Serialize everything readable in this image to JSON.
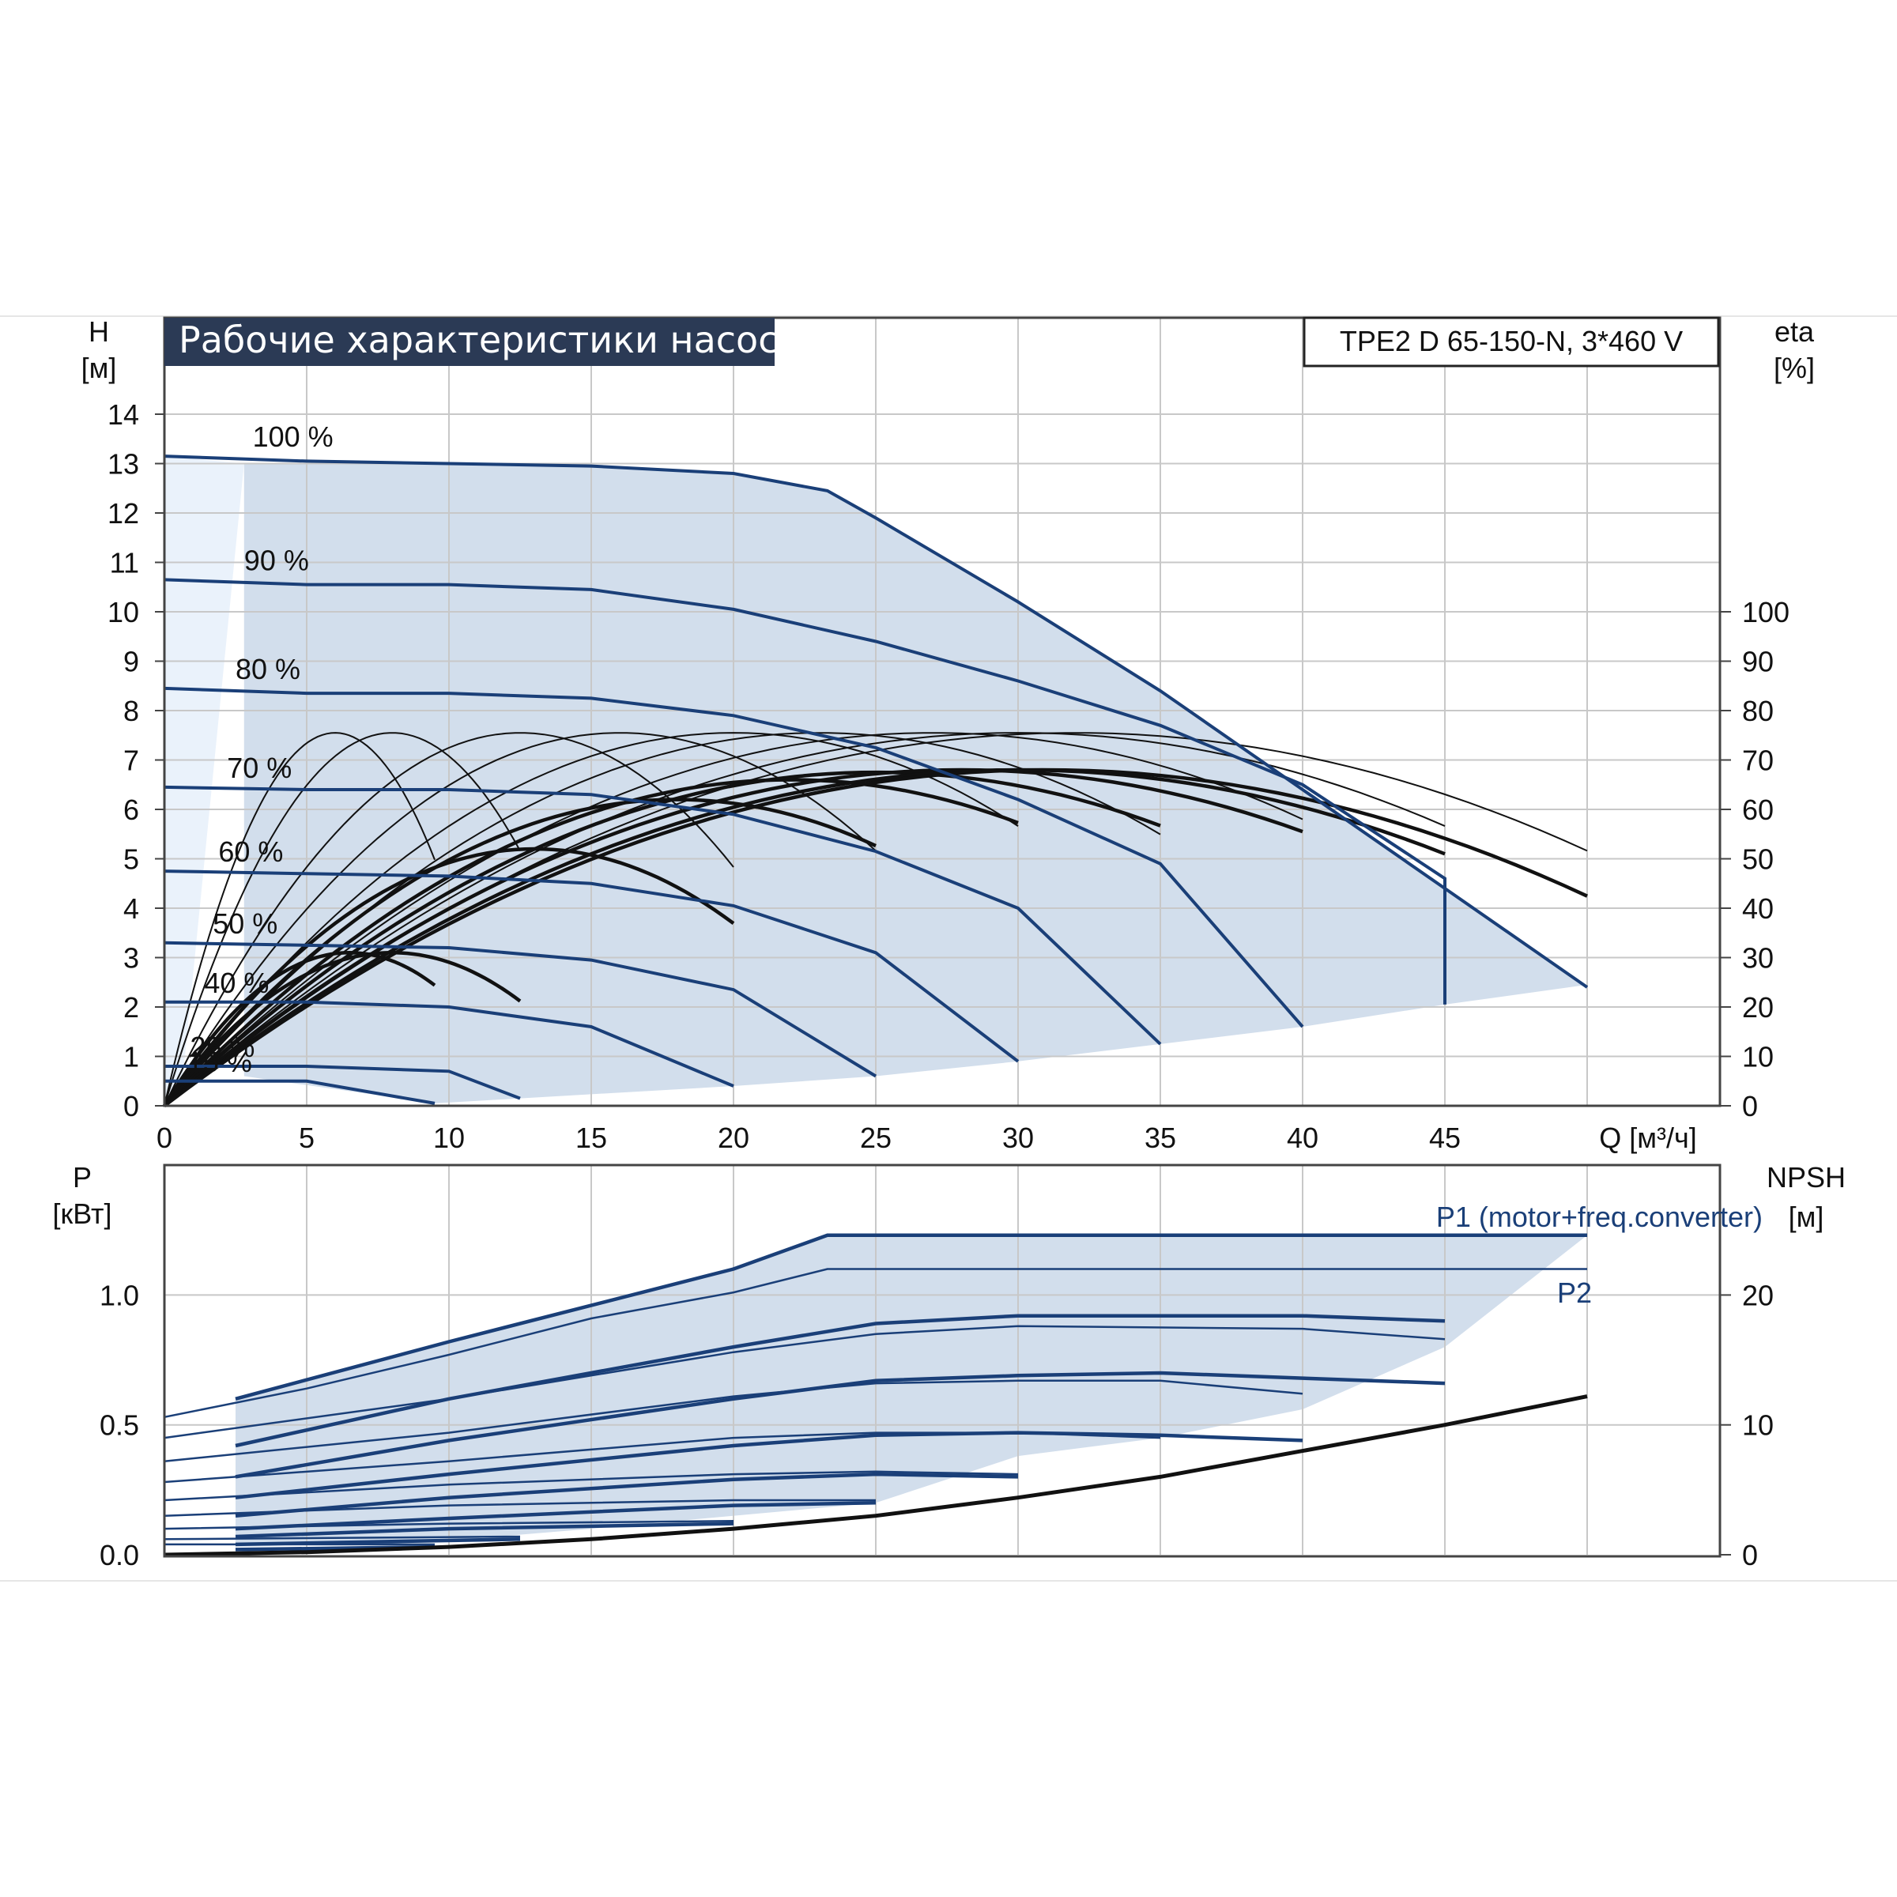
{
  "title": "Рабочие характеристики насоса",
  "model": "TPE2 D 65-150-N, 3*460 V",
  "colors": {
    "band": "#d2deec",
    "band_light": "#eaf2fb",
    "curve_blue": "#1a3f78",
    "curve_black": "#111111",
    "grid": "#c8c8c8",
    "title_bg": "#2b3a55"
  },
  "chart_data": [
    {
      "type": "line",
      "name": "head-efficiency",
      "ylabel_left": "H",
      "yunit_left": "[м]",
      "ylabel_right": "eta",
      "yunit_right": "[%]",
      "xlabel": "Q [м³/ч]",
      "xlim": [
        0,
        50
      ],
      "ylim": [
        0,
        14
      ],
      "yticks_left": [
        "0",
        "1",
        "2",
        "3",
        "4",
        "5",
        "6",
        "7",
        "8",
        "9",
        "10",
        "11",
        "12",
        "13",
        "14"
      ],
      "yticks_right": [
        "0",
        "10",
        "20",
        "30",
        "40",
        "50",
        "60",
        "70",
        "80",
        "90",
        "100"
      ],
      "xticks": [
        "0",
        "5",
        "10",
        "15",
        "20",
        "25",
        "30",
        "35",
        "40",
        "45"
      ],
      "speed_curves": [
        {
          "label": "100 %",
          "points": [
            [
              0,
              13.15
            ],
            [
              5,
              13.05
            ],
            [
              10,
              13.0
            ],
            [
              15,
              12.95
            ],
            [
              20,
              12.8
            ],
            [
              23.3,
              12.45
            ],
            [
              25,
              11.9
            ],
            [
              30,
              10.2
            ],
            [
              35,
              8.4
            ],
            [
              40,
              6.4
            ],
            [
              45,
              4.4
            ],
            [
              50,
              2.4
            ]
          ]
        },
        {
          "label": "90 %",
          "points": [
            [
              0,
              10.65
            ],
            [
              5,
              10.55
            ],
            [
              10,
              10.55
            ],
            [
              15,
              10.45
            ],
            [
              20,
              10.05
            ],
            [
              25,
              9.4
            ],
            [
              30,
              8.6
            ],
            [
              35,
              7.7
            ],
            [
              40,
              6.5
            ],
            [
              45,
              4.6
            ],
            [
              45,
              2.05
            ]
          ]
        },
        {
          "label": "80 %",
          "points": [
            [
              0,
              8.45
            ],
            [
              5,
              8.35
            ],
            [
              10,
              8.35
            ],
            [
              15,
              8.25
            ],
            [
              20,
              7.9
            ],
            [
              25,
              7.25
            ],
            [
              30,
              6.2
            ],
            [
              35,
              4.9
            ],
            [
              40,
              1.6
            ]
          ]
        },
        {
          "label": "70 %",
          "points": [
            [
              0,
              6.45
            ],
            [
              5,
              6.4
            ],
            [
              10,
              6.4
            ],
            [
              15,
              6.3
            ],
            [
              20,
              5.9
            ],
            [
              25,
              5.15
            ],
            [
              30,
              4.0
            ],
            [
              35,
              1.25
            ]
          ]
        },
        {
          "label": "60 %",
          "points": [
            [
              0,
              4.75
            ],
            [
              5,
              4.7
            ],
            [
              10,
              4.65
            ],
            [
              15,
              4.5
            ],
            [
              20,
              4.05
            ],
            [
              25,
              3.1
            ],
            [
              30,
              0.9
            ]
          ]
        },
        {
          "label": "50 %",
          "points": [
            [
              0,
              3.3
            ],
            [
              5,
              3.25
            ],
            [
              10,
              3.2
            ],
            [
              15,
              2.95
            ],
            [
              20,
              2.35
            ],
            [
              25,
              0.6
            ]
          ]
        },
        {
          "label": "40 %",
          "points": [
            [
              0,
              2.1
            ],
            [
              5,
              2.1
            ],
            [
              10,
              2.0
            ],
            [
              15,
              1.6
            ],
            [
              20,
              0.4
            ]
          ]
        },
        {
          "label": "25 %",
          "points": [
            [
              0,
              0.8
            ],
            [
              5,
              0.8
            ],
            [
              10,
              0.7
            ],
            [
              12.5,
              0.15
            ]
          ]
        },
        {
          "label": "15 %",
          "points": [
            [
              0,
              0.5
            ],
            [
              5,
              0.5
            ],
            [
              9.5,
              0.05
            ]
          ]
        }
      ],
      "efficiency_curves": [
        {
          "peak_q": 6,
          "peak_eta": 75.5,
          "end_q": 9.5
        },
        {
          "peak_q": 8,
          "peak_eta": 75.5,
          "end_q": 12.5
        },
        {
          "peak_q": 12.5,
          "peak_eta": 75.5,
          "end_q": 20
        },
        {
          "peak_q": 16,
          "peak_eta": 75.5,
          "end_q": 25
        },
        {
          "peak_q": 20,
          "peak_eta": 75.5,
          "end_q": 30
        },
        {
          "peak_q": 23,
          "peak_eta": 75.5,
          "end_q": 35
        },
        {
          "peak_q": 27,
          "peak_eta": 75.5,
          "end_q": 40
        },
        {
          "peak_q": 30,
          "peak_eta": 75.5,
          "end_q": 45
        },
        {
          "peak_q": 32,
          "peak_eta": 75.5,
          "end_q": 50
        },
        {
          "peak_q": 6.5,
          "peak_eta": 31,
          "end_q": 9.5
        },
        {
          "peak_q": 8,
          "peak_eta": 31,
          "end_q": 12.5
        },
        {
          "peak_q": 13,
          "peak_eta": 52,
          "end_q": 20
        },
        {
          "peak_q": 18,
          "peak_eta": 62,
          "end_q": 25
        },
        {
          "peak_q": 22,
          "peak_eta": 66,
          "end_q": 30
        },
        {
          "peak_q": 25,
          "peak_eta": 67.5,
          "end_q": 35
        },
        {
          "peak_q": 28,
          "peak_eta": 68,
          "end_q": 40
        },
        {
          "peak_q": 30,
          "peak_eta": 68,
          "end_q": 45
        },
        {
          "peak_q": 31,
          "peak_eta": 68,
          "end_q": 50
        }
      ]
    },
    {
      "type": "line",
      "name": "power-npsh",
      "ylabel_left": "P",
      "yunit_left": "[кВт]",
      "ylabel_right": "NPSH",
      "yunit_right": "[м]",
      "xlim": [
        0,
        50
      ],
      "ylim": [
        0,
        1.3
      ],
      "yticks_left": [
        "0.0",
        "0.5",
        "1.0"
      ],
      "yticks_right": [
        "0",
        "10",
        "20"
      ],
      "series_labels": {
        "p1": "P1 (motor+freq.converter)",
        "p2": "P2"
      },
      "p1_curves": [
        {
          "points": [
            [
              2.5,
              0.6
            ],
            [
              10,
              0.82
            ],
            [
              20,
              1.1
            ],
            [
              23.3,
              1.23
            ],
            [
              30,
              1.23
            ],
            [
              40,
              1.23
            ],
            [
              50,
              1.23
            ]
          ]
        },
        {
          "points": [
            [
              2.5,
              0.42
            ],
            [
              10,
              0.6
            ],
            [
              20,
              0.8
            ],
            [
              25,
              0.89
            ],
            [
              30,
              0.92
            ],
            [
              40,
              0.92
            ],
            [
              45,
              0.9
            ]
          ]
        },
        {
          "points": [
            [
              2.5,
              0.3
            ],
            [
              10,
              0.44
            ],
            [
              20,
              0.6
            ],
            [
              25,
              0.67
            ],
            [
              30,
              0.69
            ],
            [
              35,
              0.7
            ],
            [
              40,
              0.68
            ],
            [
              45,
              0.66
            ]
          ]
        },
        {
          "points": [
            [
              2.5,
              0.22
            ],
            [
              10,
              0.31
            ],
            [
              20,
              0.42
            ],
            [
              25,
              0.46
            ],
            [
              30,
              0.47
            ],
            [
              35,
              0.46
            ],
            [
              40,
              0.44
            ]
          ]
        },
        {
          "points": [
            [
              2.5,
              0.15
            ],
            [
              10,
              0.22
            ],
            [
              20,
              0.29
            ],
            [
              25,
              0.31
            ],
            [
              30,
              0.3
            ]
          ]
        },
        {
          "points": [
            [
              2.5,
              0.1
            ],
            [
              10,
              0.14
            ],
            [
              20,
              0.19
            ],
            [
              25,
              0.2
            ]
          ]
        },
        {
          "points": [
            [
              2.5,
              0.07
            ],
            [
              10,
              0.1
            ],
            [
              20,
              0.12
            ]
          ]
        },
        {
          "points": [
            [
              2.5,
              0.04
            ],
            [
              12.5,
              0.06
            ]
          ]
        },
        {
          "points": [
            [
              2.5,
              0.02
            ],
            [
              9.5,
              0.03
            ]
          ]
        }
      ],
      "p2_curves": [
        {
          "points": [
            [
              0,
              0.53
            ],
            [
              5,
              0.64
            ],
            [
              10,
              0.77
            ],
            [
              15,
              0.91
            ],
            [
              20,
              1.01
            ],
            [
              23.3,
              1.1
            ],
            [
              30,
              1.1
            ],
            [
              40,
              1.1
            ],
            [
              50,
              1.1
            ]
          ]
        },
        {
          "points": [
            [
              0,
              0.45
            ],
            [
              10,
              0.6
            ],
            [
              20,
              0.78
            ],
            [
              25,
              0.85
            ],
            [
              30,
              0.88
            ],
            [
              40,
              0.87
            ],
            [
              45,
              0.83
            ]
          ]
        },
        {
          "points": [
            [
              0,
              0.36
            ],
            [
              10,
              0.47
            ],
            [
              20,
              0.61
            ],
            [
              25,
              0.66
            ],
            [
              30,
              0.67
            ],
            [
              35,
              0.67
            ],
            [
              40,
              0.62
            ]
          ]
        },
        {
          "points": [
            [
              0,
              0.28
            ],
            [
              10,
              0.36
            ],
            [
              20,
              0.45
            ],
            [
              25,
              0.47
            ],
            [
              30,
              0.47
            ],
            [
              35,
              0.45
            ]
          ]
        },
        {
          "points": [
            [
              0,
              0.21
            ],
            [
              10,
              0.27
            ],
            [
              20,
              0.31
            ],
            [
              25,
              0.32
            ],
            [
              30,
              0.31
            ]
          ]
        },
        {
          "points": [
            [
              0,
              0.15
            ],
            [
              10,
              0.19
            ],
            [
              20,
              0.21
            ],
            [
              25,
              0.21
            ]
          ]
        },
        {
          "points": [
            [
              0,
              0.1
            ],
            [
              10,
              0.12
            ],
            [
              20,
              0.13
            ]
          ]
        },
        {
          "points": [
            [
              0,
              0.06
            ],
            [
              12.5,
              0.07
            ]
          ]
        },
        {
          "points": [
            [
              0,
              0.04
            ],
            [
              9.5,
              0.04
            ]
          ]
        }
      ],
      "npsh_curve": [
        [
          0,
          0.0
        ],
        [
          5,
          0.01
        ],
        [
          10,
          0.03
        ],
        [
          15,
          0.06
        ],
        [
          20,
          0.1
        ],
        [
          25,
          0.15
        ],
        [
          30,
          0.22
        ],
        [
          35,
          0.3
        ],
        [
          40,
          0.4
        ],
        [
          45,
          0.5
        ],
        [
          50,
          0.61
        ]
      ]
    }
  ]
}
